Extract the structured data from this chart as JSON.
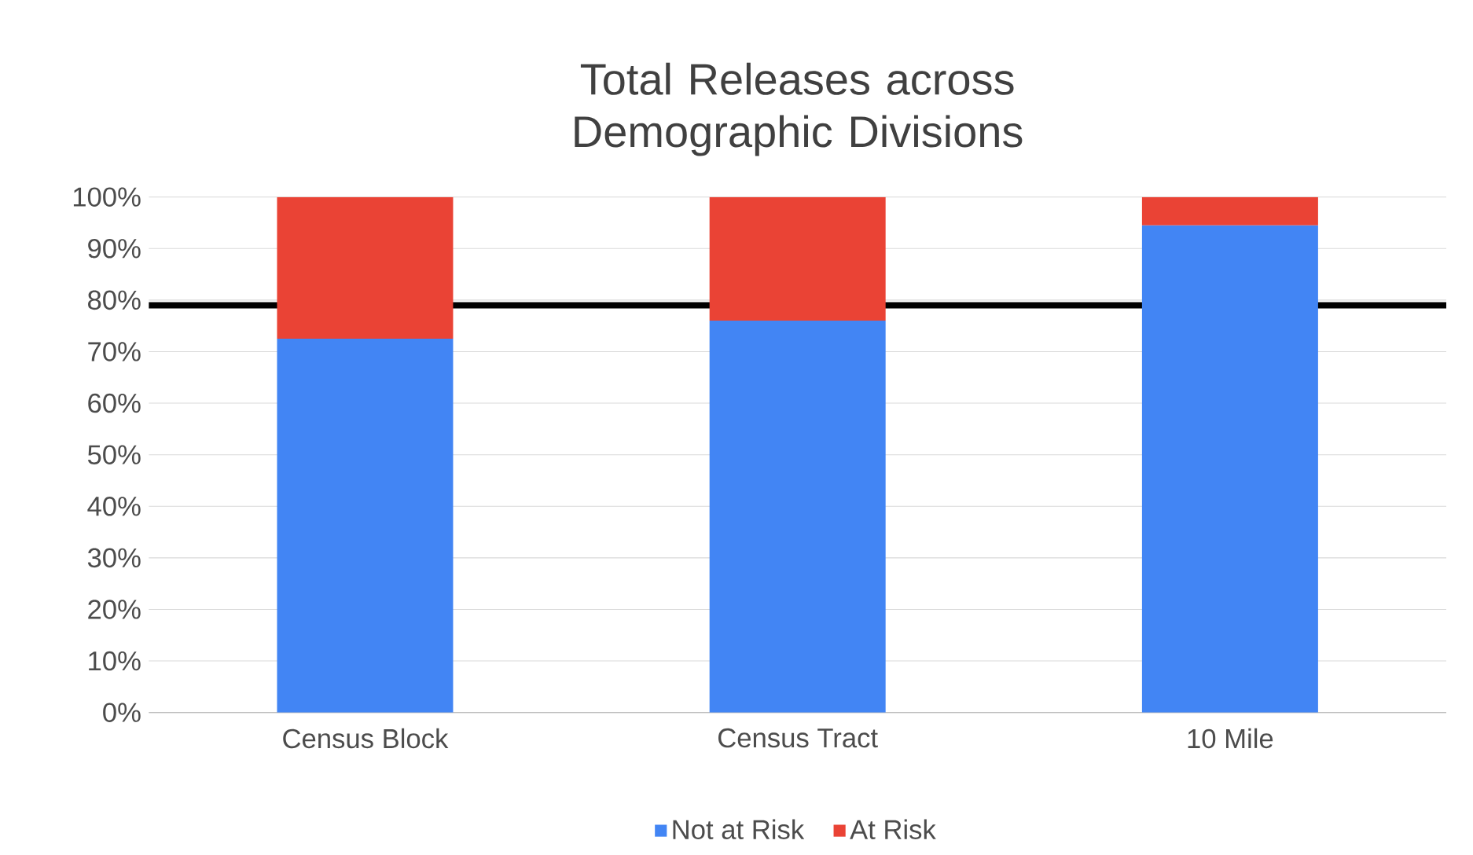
{
  "chart_data": {
    "type": "bar",
    "title": "Total Releases across Demographic Divisions",
    "categories": [
      "Census Block",
      "Census Tract",
      "10 Mile"
    ],
    "stacked": true,
    "series": [
      {
        "name": "Not at Risk",
        "color": "#4285f4",
        "values": [
          72.5,
          76,
          94.5
        ]
      },
      {
        "name": "At Risk",
        "color": "#ea4335",
        "values": [
          27.5,
          24,
          5.5
        ]
      }
    ],
    "ylim": [
      0,
      100
    ],
    "yticks": [
      {
        "value": 0,
        "label": "0%"
      },
      {
        "value": 10,
        "label": "10%"
      },
      {
        "value": 20,
        "label": "20%"
      },
      {
        "value": 30,
        "label": "30%"
      },
      {
        "value": 40,
        "label": "40%"
      },
      {
        "value": 50,
        "label": "50%"
      },
      {
        "value": 60,
        "label": "60%"
      },
      {
        "value": 70,
        "label": "70%"
      },
      {
        "value": 80,
        "label": "80%"
      },
      {
        "value": 90,
        "label": "90%"
      },
      {
        "value": 100,
        "label": "100%"
      }
    ],
    "ref_lines": [
      {
        "axis": "y",
        "value": 79,
        "color": "#000000"
      }
    ],
    "grid": "y",
    "legend": "bottom"
  }
}
